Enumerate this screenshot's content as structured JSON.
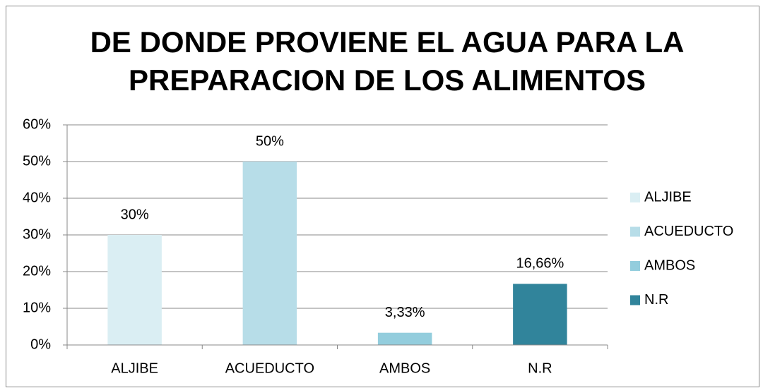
{
  "chart_data": {
    "type": "bar",
    "title": [
      "DE DONDE PROVIENE EL AGUA PARA LA",
      "PREPARACION DE LOS ALIMENTOS"
    ],
    "categories": [
      "ALJIBE",
      "ACUEDUCTO",
      "AMBOS",
      "N.R"
    ],
    "values": [
      30,
      50,
      3.33,
      16.66
    ],
    "value_labels": [
      "30%",
      "50%",
      "3,33%",
      "16,66%"
    ],
    "colors": [
      "#daeef3",
      "#b7dde8",
      "#93cddd",
      "#31849b"
    ],
    "ylim": [
      0,
      60
    ],
    "yticks": [
      {
        "value": 0,
        "label": "0%"
      },
      {
        "value": 10,
        "label": "10%"
      },
      {
        "value": 20,
        "label": "20%"
      },
      {
        "value": 30,
        "label": "30%"
      },
      {
        "value": 40,
        "label": "40%"
      },
      {
        "value": 50,
        "label": "50%"
      },
      {
        "value": 60,
        "label": "60%"
      }
    ],
    "grid": true,
    "legend": "right"
  }
}
